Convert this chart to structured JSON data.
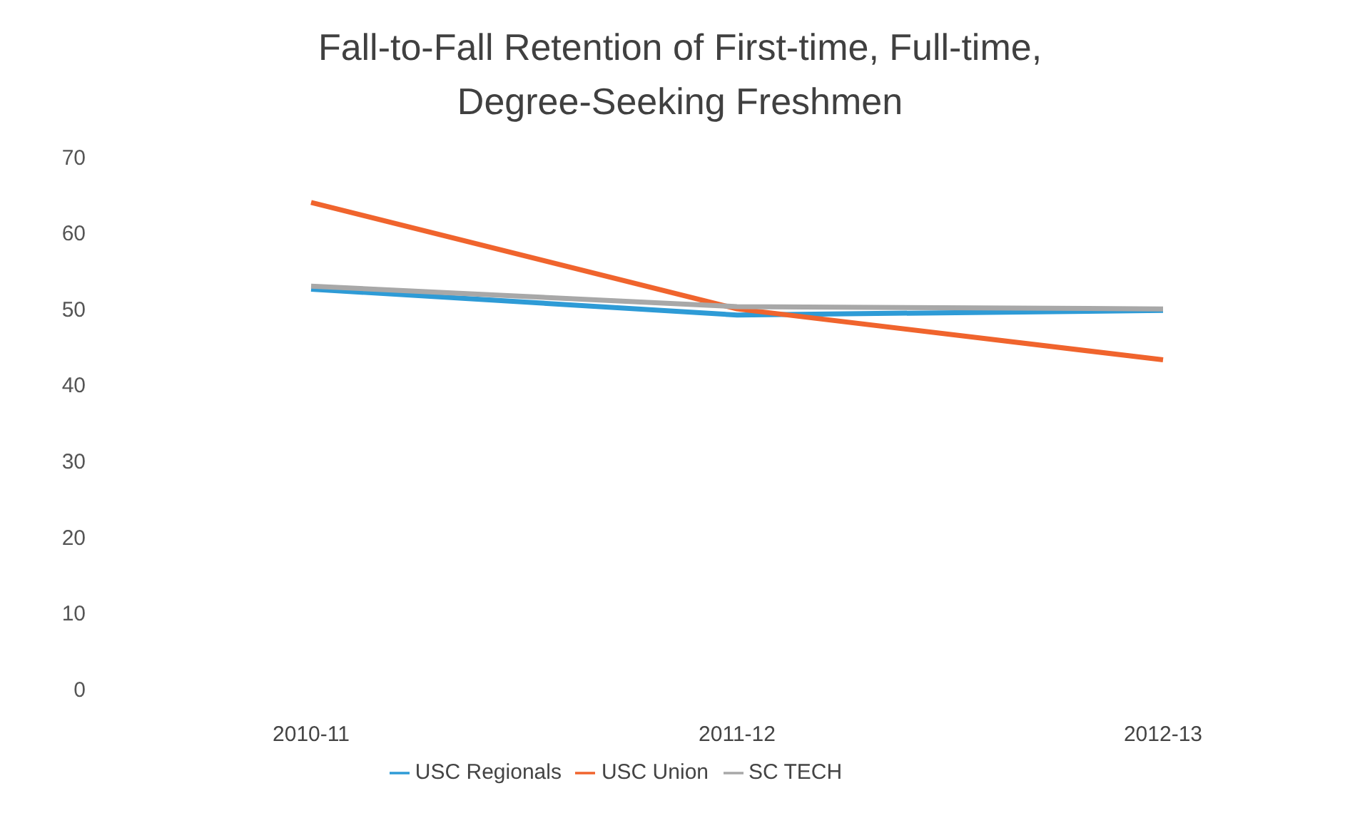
{
  "chart_data": {
    "type": "line",
    "title": "Fall-to-Fall Retention of First-time, Full-time, Degree-Seeking Freshmen",
    "categories": [
      "2010-11",
      "2011-12",
      "2012-13"
    ],
    "series": [
      {
        "name": "USC Regionals",
        "color": "#2e9bd6",
        "values": [
          52.6,
          49.2,
          49.8
        ]
      },
      {
        "name": "USC Union",
        "color": "#f0642d",
        "values": [
          64,
          50,
          43.3
        ]
      },
      {
        "name": "SC TECH",
        "color": "#a8a8a8",
        "values": [
          53,
          50.3,
          50
        ]
      }
    ],
    "ylim": [
      0,
      70
    ],
    "yticks": [
      0,
      10,
      20,
      30,
      40,
      50,
      60,
      70
    ],
    "grid": false,
    "legend": "bottom",
    "marker": "none",
    "line_style": "solid"
  }
}
